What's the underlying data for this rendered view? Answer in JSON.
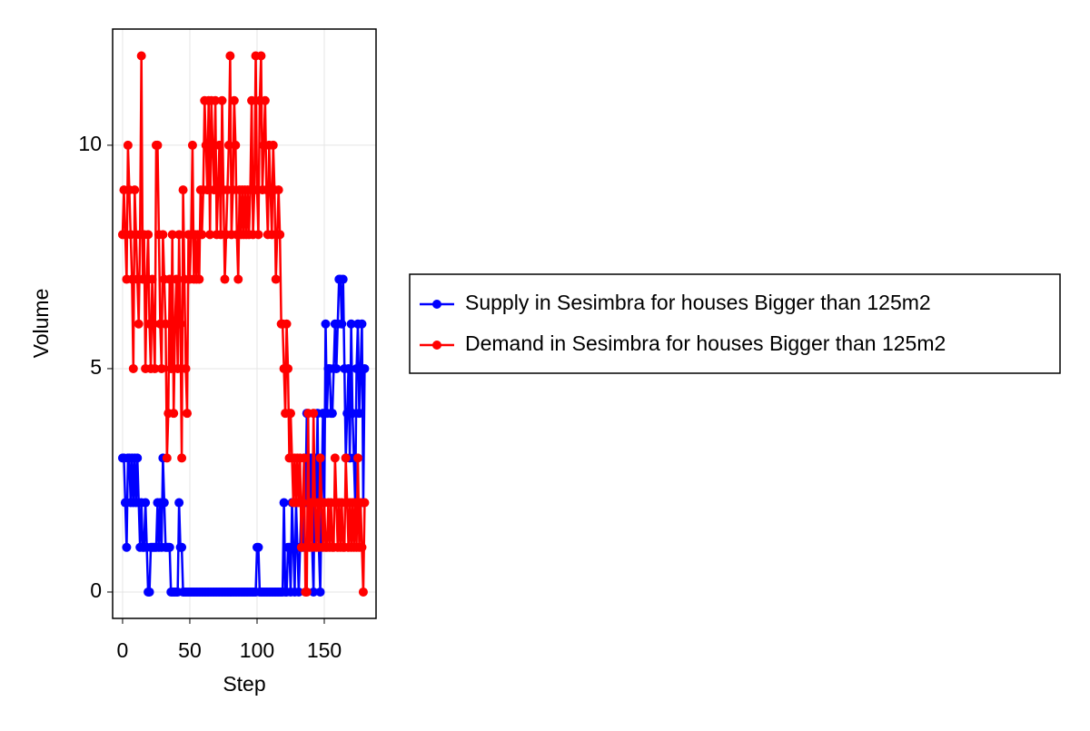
{
  "chart_data": {
    "type": "line",
    "x_label": "Step",
    "y_label": "Volume",
    "x": [
      0,
      1,
      2,
      3,
      4,
      5,
      6,
      7,
      8,
      9,
      10,
      11,
      12,
      13,
      14,
      15,
      16,
      17,
      18,
      19,
      20,
      21,
      22,
      23,
      24,
      25,
      26,
      27,
      28,
      29,
      30,
      31,
      32,
      33,
      34,
      35,
      36,
      37,
      38,
      39,
      40,
      41,
      42,
      43,
      44,
      45,
      46,
      47,
      48,
      49,
      50,
      51,
      52,
      53,
      54,
      55,
      56,
      57,
      58,
      59,
      60,
      61,
      62,
      63,
      64,
      65,
      66,
      67,
      68,
      69,
      70,
      71,
      72,
      73,
      74,
      75,
      76,
      77,
      78,
      79,
      80,
      81,
      82,
      83,
      84,
      85,
      86,
      87,
      88,
      89,
      90,
      91,
      92,
      93,
      94,
      95,
      96,
      97,
      98,
      99,
      100,
      101,
      102,
      103,
      104,
      105,
      106,
      107,
      108,
      109,
      110,
      111,
      112,
      113,
      114,
      115,
      116,
      117,
      118,
      119,
      120,
      121,
      122,
      123,
      124,
      125,
      126,
      127,
      128,
      129,
      130,
      131,
      132,
      133,
      134,
      135,
      136,
      137,
      138,
      139,
      140,
      141,
      142,
      143,
      144,
      145,
      146,
      147,
      148,
      149,
      150,
      151,
      152,
      153,
      154,
      155,
      156,
      157,
      158,
      159,
      160,
      161,
      162,
      163,
      164,
      165,
      166,
      167,
      168,
      169,
      170,
      171,
      172,
      173,
      174,
      175,
      176,
      177,
      178,
      179,
      180
    ],
    "series": [
      {
        "name": "Supply in Sesimbra for houses Bigger than 125m2",
        "color": "#0000ff",
        "values": [
          3,
          3,
          2,
          1,
          3,
          3,
          2,
          3,
          2,
          3,
          2,
          3,
          2,
          1,
          2,
          1,
          1,
          2,
          1,
          0,
          0,
          1,
          1,
          1,
          1,
          1,
          2,
          1,
          2,
          1,
          3,
          2,
          1,
          1,
          1,
          1,
          0,
          0,
          0,
          0,
          0,
          0,
          2,
          1,
          1,
          0,
          0,
          0,
          0,
          0,
          0,
          0,
          0,
          0,
          0,
          0,
          0,
          0,
          0,
          0,
          0,
          0,
          0,
          0,
          0,
          0,
          0,
          0,
          0,
          0,
          0,
          0,
          0,
          0,
          0,
          0,
          0,
          0,
          0,
          0,
          0,
          0,
          0,
          0,
          0,
          0,
          0,
          0,
          0,
          0,
          0,
          0,
          0,
          0,
          0,
          0,
          0,
          0,
          0,
          0,
          1,
          1,
          0,
          0,
          0,
          0,
          0,
          0,
          0,
          0,
          0,
          0,
          0,
          0,
          0,
          0,
          0,
          0,
          0,
          0,
          2,
          0,
          0,
          1,
          1,
          0,
          2,
          1,
          0,
          2,
          1,
          0,
          1,
          2,
          1,
          3,
          2,
          4,
          3,
          2,
          3,
          1,
          0,
          3,
          2,
          4,
          1,
          0,
          2,
          4,
          2,
          6,
          4,
          5,
          5,
          4,
          4,
          5,
          6,
          5,
          6,
          7,
          7,
          6,
          7,
          5,
          3,
          4,
          5,
          3,
          6,
          4,
          3,
          2,
          5,
          6,
          4,
          5,
          6,
          2,
          5
        ]
      },
      {
        "name": "Demand in Sesimbra for houses Bigger than 125m2",
        "color": "#ff0000",
        "values": [
          8,
          9,
          8,
          7,
          10,
          9,
          8,
          7,
          5,
          9,
          8,
          7,
          6,
          8,
          12,
          7,
          8,
          5,
          7,
          8,
          6,
          5,
          7,
          6,
          5,
          10,
          10,
          8,
          6,
          5,
          8,
          7,
          6,
          3,
          4,
          7,
          5,
          8,
          4,
          6,
          7,
          5,
          8,
          6,
          3,
          9,
          7,
          5,
          4,
          8,
          7,
          8,
          10,
          7,
          8,
          7,
          8,
          7,
          9,
          8,
          9,
          11,
          10,
          9,
          11,
          8,
          11,
          10,
          9,
          11,
          8,
          9,
          10,
          8,
          11,
          9,
          7,
          8,
          9,
          10,
          12,
          8,
          9,
          11,
          10,
          8,
          7,
          9,
          8,
          9,
          8,
          9,
          8,
          9,
          8,
          9,
          11,
          8,
          9,
          12,
          9,
          8,
          11,
          12,
          9,
          10,
          11,
          9,
          8,
          10,
          9,
          8,
          10,
          9,
          7,
          8,
          9,
          8,
          6,
          6,
          5,
          4,
          6,
          5,
          3,
          4,
          3,
          2,
          3,
          2,
          3,
          2,
          3,
          1,
          2,
          3,
          0,
          0,
          4,
          1,
          2,
          1,
          4,
          2,
          1,
          2,
          1,
          3,
          2,
          1,
          2,
          1,
          1,
          2,
          1,
          2,
          1,
          1,
          3,
          2,
          1,
          2,
          1,
          2,
          1,
          1,
          3,
          2,
          1,
          2,
          1,
          2,
          1,
          2,
          1,
          3,
          1,
          2,
          1,
          0,
          2
        ]
      }
    ],
    "xlim": [
      -7.4,
      188.5
    ],
    "ylim": [
      -0.59,
      12.6
    ],
    "xticks": [
      0,
      50,
      100,
      150
    ],
    "yticks": [
      0,
      5,
      10
    ],
    "grid": true,
    "legend": "right"
  }
}
